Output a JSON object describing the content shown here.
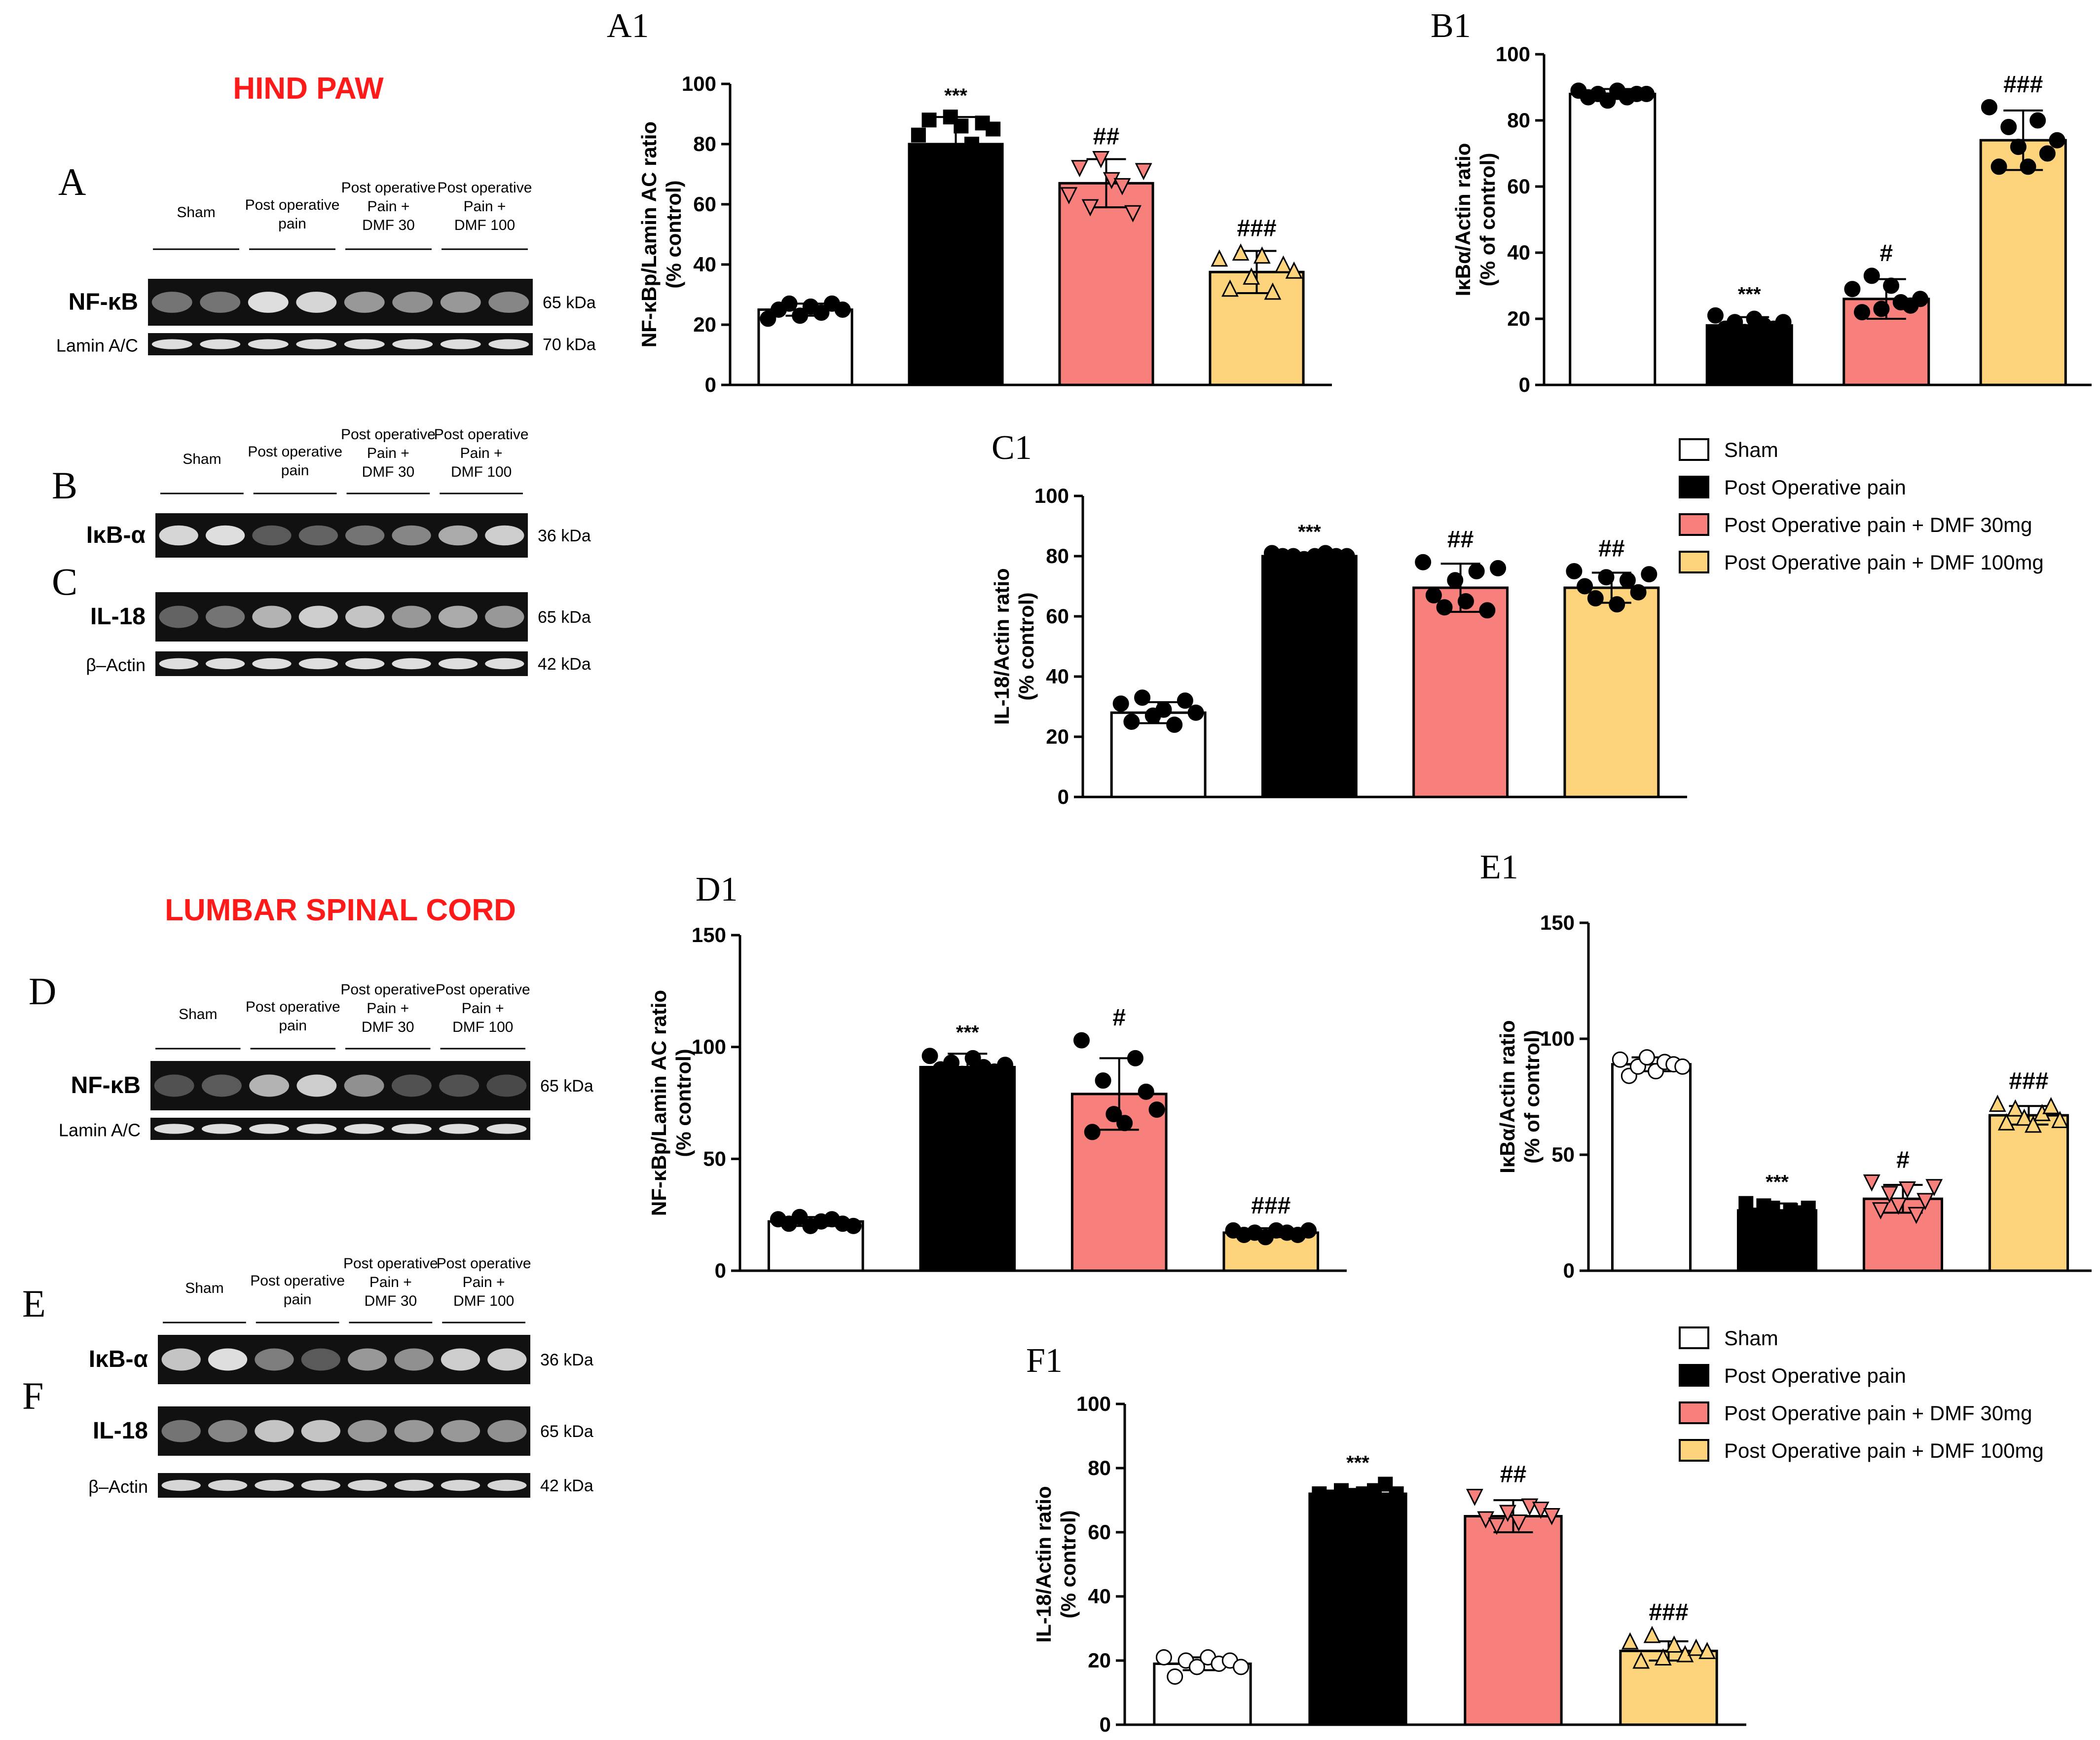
{
  "hind": {
    "title": "HIND PAW",
    "wb1": {
      "panel": "A",
      "lanes": [
        "Sham",
        "Post operative pain",
        "Post operative Pain + DMF 30",
        "Post operative Pain + DMF 100"
      ],
      "bands": [
        {
          "label": "NF-κB",
          "kda": "65 kDa",
          "intensity": [
            0.35,
            0.35,
            0.95,
            0.9,
            0.55,
            0.5,
            0.55,
            0.45
          ]
        },
        {
          "label": "Lamin A/C",
          "kda": "70 kDa",
          "intensity": [
            0.95,
            0.95,
            0.95,
            0.95,
            0.95,
            0.95,
            0.95,
            0.95
          ]
        }
      ]
    },
    "wb2": {
      "panels": [
        "B",
        "C"
      ],
      "lanes": [
        "Sham",
        "Post operative pain",
        "Post operative Pain + DMF 30",
        "Post operative Pain + DMF 100"
      ],
      "bands": [
        {
          "label": "IκB-α",
          "kda": "36 kDa",
          "intensity": [
            0.9,
            0.95,
            0.2,
            0.25,
            0.35,
            0.45,
            0.65,
            0.85
          ]
        },
        {
          "label": "IL-18",
          "kda": "65 kDa",
          "intensity": [
            0.25,
            0.35,
            0.7,
            0.85,
            0.8,
            0.55,
            0.65,
            0.55
          ]
        },
        {
          "label": "β–Actin",
          "kda": "42 kDa",
          "intensity": [
            0.95,
            0.95,
            0.95,
            0.95,
            0.95,
            0.95,
            0.95,
            0.95
          ]
        }
      ]
    }
  },
  "lumbar": {
    "title": "LUMBAR SPINAL CORD",
    "wb1": {
      "panel": "D",
      "lanes": [
        "Sham",
        "Post operative pain",
        "Post operative Pain + DMF 30",
        "Post operative Pain + DMF 100"
      ],
      "bands": [
        {
          "label": "NF-κB",
          "kda": "65 kDa",
          "intensity": [
            0.15,
            0.2,
            0.7,
            0.85,
            0.5,
            0.15,
            0.15,
            0.1
          ]
        },
        {
          "label": "Lamin A/C",
          "kda": "",
          "intensity": [
            0.95,
            0.95,
            0.95,
            0.95,
            0.95,
            0.95,
            0.95,
            0.95
          ]
        }
      ]
    },
    "wb2": {
      "panels": [
        "E",
        "F"
      ],
      "lanes": [
        "Sham",
        "Post operative pain",
        "Post operative Pain + DMF 30",
        "Post operative Pain + DMF 100"
      ],
      "bands": [
        {
          "label": "IκB-α",
          "kda": "36 kDa",
          "intensity": [
            0.8,
            0.95,
            0.4,
            0.2,
            0.55,
            0.5,
            0.85,
            0.85
          ]
        },
        {
          "label": "IL-18",
          "kda": "65 kDa",
          "intensity": [
            0.35,
            0.45,
            0.8,
            0.8,
            0.55,
            0.55,
            0.55,
            0.5
          ]
        },
        {
          "label": "β–Actin",
          "kda": "42 kDa",
          "intensity": [
            0.9,
            0.9,
            0.9,
            0.9,
            0.9,
            0.9,
            0.9,
            0.9
          ]
        }
      ]
    }
  },
  "legends": [
    [
      "Sham",
      "Post Operative pain",
      "Post Operative pain + DMF 30mg",
      "Post Operative pain + DMF 100mg"
    ],
    [
      "Sham",
      "Post Operative pain",
      "Post Operative pain + DMF 30mg",
      "Post Operative pain + DMF 100mg"
    ]
  ],
  "colors": {
    "sham": "#ffffff",
    "pop": "#000000",
    "dmf30": "#f8807c",
    "dmf100": "#fdd37b",
    "title_red": "#ff1a1a"
  },
  "chart_data": [
    {
      "id": "A1",
      "type": "bar",
      "title": "A1",
      "categories": [
        "Sham",
        "Post Operative pain",
        "Post Operative pain + DMF 30mg",
        "Post Operative pain + DMF 100mg"
      ],
      "values": [
        25,
        80,
        67,
        37.5
      ],
      "errors": [
        2,
        9,
        8,
        7
      ],
      "points": [
        [
          22,
          25,
          27,
          23,
          26,
          24,
          27,
          25
        ],
        [
          83,
          88,
          76,
          89,
          86,
          80,
          87,
          85
        ],
        [
          63,
          72,
          59,
          75,
          68,
          66,
          57,
          71
        ],
        [
          42,
          32,
          44,
          36,
          43,
          31,
          40,
          38
        ]
      ],
      "markers": [
        "circle-filled",
        "square",
        "triangle-down",
        "triangle-up"
      ],
      "annotations": [
        "",
        "***",
        "##",
        "###"
      ],
      "ylabel": "NF-κBp/Lamin AC ratio\n(% control)",
      "ylim": [
        0,
        100
      ],
      "yticks": [
        0,
        20,
        40,
        60,
        80,
        100
      ]
    },
    {
      "id": "B1",
      "type": "bar",
      "title": "B1",
      "categories": [
        "Sham",
        "Post Operative pain",
        "Post Operative pain + DMF 30mg",
        "Post Operative pain + DMF 100mg"
      ],
      "values": [
        88,
        18,
        26,
        74
      ],
      "errors": [
        1.5,
        2.5,
        6,
        9
      ],
      "points": [
        [
          89,
          87,
          88,
          86,
          89,
          87,
          88,
          88
        ],
        [
          21,
          17,
          19,
          16,
          20,
          18,
          17,
          19
        ],
        [
          29,
          22,
          33,
          23,
          30,
          25,
          24,
          26
        ],
        [
          84,
          66,
          78,
          72,
          66,
          80,
          70,
          74
        ]
      ],
      "markers": [
        "circle-filled",
        "circle-filled",
        "circle-filled",
        "circle-filled"
      ],
      "annotations": [
        "",
        "***",
        "#",
        "###"
      ],
      "ylabel": "IκBα/Actin ratio\n(% of control)",
      "ylim": [
        0,
        100
      ],
      "yticks": [
        0,
        20,
        40,
        60,
        80,
        100
      ]
    },
    {
      "id": "C1",
      "type": "bar",
      "title": "C1",
      "categories": [
        "Sham",
        "Post Operative pain",
        "Post Operative pain + DMF 30mg",
        "Post Operative pain + DMF 100mg"
      ],
      "values": [
        28,
        80,
        69.5,
        69.5
      ],
      "errors": [
        3.5,
        1,
        8,
        5
      ],
      "points": [
        [
          31,
          25,
          33,
          27,
          29,
          24,
          32,
          28
        ],
        [
          81,
          80,
          80,
          79,
          80,
          81,
          80,
          80
        ],
        [
          78,
          67,
          63,
          72,
          65,
          75,
          62,
          76
        ],
        [
          75,
          70,
          66,
          73,
          64,
          72,
          68,
          74
        ]
      ],
      "markers": [
        "circle-filled",
        "circle-filled",
        "circle-filled",
        "circle-filled"
      ],
      "annotations": [
        "",
        "***",
        "##",
        "##"
      ],
      "ylabel": "IL-18/Actin ratio\n(% control)",
      "ylim": [
        0,
        100
      ],
      "yticks": [
        0,
        20,
        40,
        60,
        80,
        100
      ]
    },
    {
      "id": "D1",
      "type": "bar",
      "title": "D1",
      "categories": [
        "Sham",
        "Post Operative pain",
        "Post Operative pain + DMF 30mg",
        "Post Operative pain + DMF 100mg"
      ],
      "values": [
        22,
        91,
        79,
        17
      ],
      "errors": [
        2,
        6,
        16,
        2
      ],
      "points": [
        [
          23,
          21,
          24,
          20,
          22,
          23,
          21,
          20
        ],
        [
          96,
          90,
          93,
          88,
          95,
          91,
          89,
          92
        ],
        [
          103,
          62,
          85,
          70,
          66,
          95,
          80,
          72
        ],
        [
          18,
          16,
          17,
          15,
          18,
          17,
          16,
          18
        ]
      ],
      "markers": [
        "circle-filled",
        "circle-filled",
        "circle-filled",
        "circle-filled"
      ],
      "annotations": [
        "",
        "***",
        "#",
        "###"
      ],
      "ylabel": "NF-κBp/Lamin AC ratio\n(% control)",
      "ylim": [
        0,
        150
      ],
      "yticks": [
        0,
        50,
        100,
        150
      ]
    },
    {
      "id": "E1",
      "type": "bar",
      "title": "E1",
      "categories": [
        "Sham",
        "Post Operative pain",
        "Post Operative pain + DMF 30mg",
        "Post Operative pain + DMF 100mg"
      ],
      "values": [
        89,
        26,
        31,
        67
      ],
      "errors": [
        3,
        3,
        6,
        4
      ],
      "points": [
        [
          91,
          84,
          88,
          92,
          86,
          90,
          89,
          88
        ],
        [
          29,
          24,
          28,
          27,
          23,
          26,
          25,
          27
        ],
        [
          38,
          26,
          33,
          28,
          35,
          24,
          30,
          36
        ],
        [
          72,
          64,
          70,
          66,
          63,
          68,
          71,
          65
        ]
      ],
      "markers": [
        "circle-open",
        "square",
        "triangle-down",
        "triangle-up"
      ],
      "annotations": [
        "",
        "***",
        "#",
        "###"
      ],
      "ylabel": "IκBα/Actin ratio\n(% of control)",
      "ylim": [
        0,
        150
      ],
      "yticks": [
        0,
        50,
        100,
        150
      ]
    },
    {
      "id": "F1",
      "type": "bar",
      "title": "F1",
      "categories": [
        "Sham",
        "Post Operative pain",
        "Post Operative pain + DMF 30mg",
        "Post Operative pain + DMF 100mg"
      ],
      "values": [
        19,
        72,
        65,
        23
      ],
      "errors": [
        2,
        1.5,
        5,
        3
      ],
      "points": [
        [
          21,
          15,
          20,
          18,
          21,
          19,
          20,
          18
        ],
        [
          72,
          71,
          73,
          71,
          72,
          73,
          75,
          72
        ],
        [
          71,
          64,
          62,
          66,
          63,
          68,
          67,
          65
        ],
        [
          26,
          20,
          28,
          21,
          25,
          22,
          24,
          23
        ]
      ],
      "markers": [
        "circle-open",
        "square",
        "triangle-down",
        "triangle-up"
      ],
      "annotations": [
        "",
        "***",
        "##",
        "###"
      ],
      "ylabel": "IL-18/Actin ratio\n(% control)",
      "ylim": [
        0,
        100
      ],
      "yticks": [
        0,
        20,
        40,
        60,
        80,
        100
      ]
    }
  ]
}
